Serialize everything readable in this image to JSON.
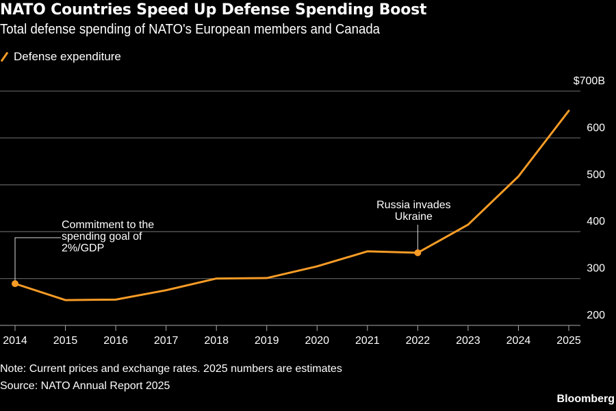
{
  "header": {
    "title": "NATO Countries Speed Up Defense Spending Boost",
    "subtitle": "Total defense spending of NATO's European members and Canada"
  },
  "legend": {
    "items": [
      {
        "label": "Defense expenditure",
        "color": "#f89c26"
      }
    ]
  },
  "footer": {
    "note": "Note: Current prices and exchange rates. 2025 numbers are estimates",
    "source": "Source: NATO Annual Report 2025",
    "brand": "Bloomberg"
  },
  "chart_data": {
    "type": "line",
    "title": "NATO Countries Speed Up Defense Spending Boost",
    "subtitle": "Total defense spending of NATO's European members and Canada",
    "xlabel": "",
    "ylabel": "",
    "x": [
      "2014",
      "2015",
      "2016",
      "2017",
      "2018",
      "2019",
      "2020",
      "2021",
      "2022",
      "2023",
      "2024",
      "2025"
    ],
    "series": [
      {
        "name": "Defense expenditure",
        "color": "#f89c26",
        "values": [
          289,
          254,
          255,
          275,
          300,
          301,
          326,
          358,
          355,
          415,
          518,
          658
        ]
      }
    ],
    "ylim": [
      200,
      700
    ],
    "yticks": [
      200,
      300,
      400,
      500,
      600,
      700
    ],
    "ytick_labels": [
      "200",
      "300",
      "400",
      "500",
      "600",
      "$700B"
    ],
    "y_axis_position": "right",
    "grid": true,
    "legend_position": "top-left",
    "annotations": [
      {
        "x": "2014",
        "text": [
          "Commitment to the",
          "spending goal of",
          "2%/GDP"
        ]
      },
      {
        "x": "2022",
        "text": [
          "Russia invades",
          "Ukraine"
        ]
      }
    ]
  }
}
